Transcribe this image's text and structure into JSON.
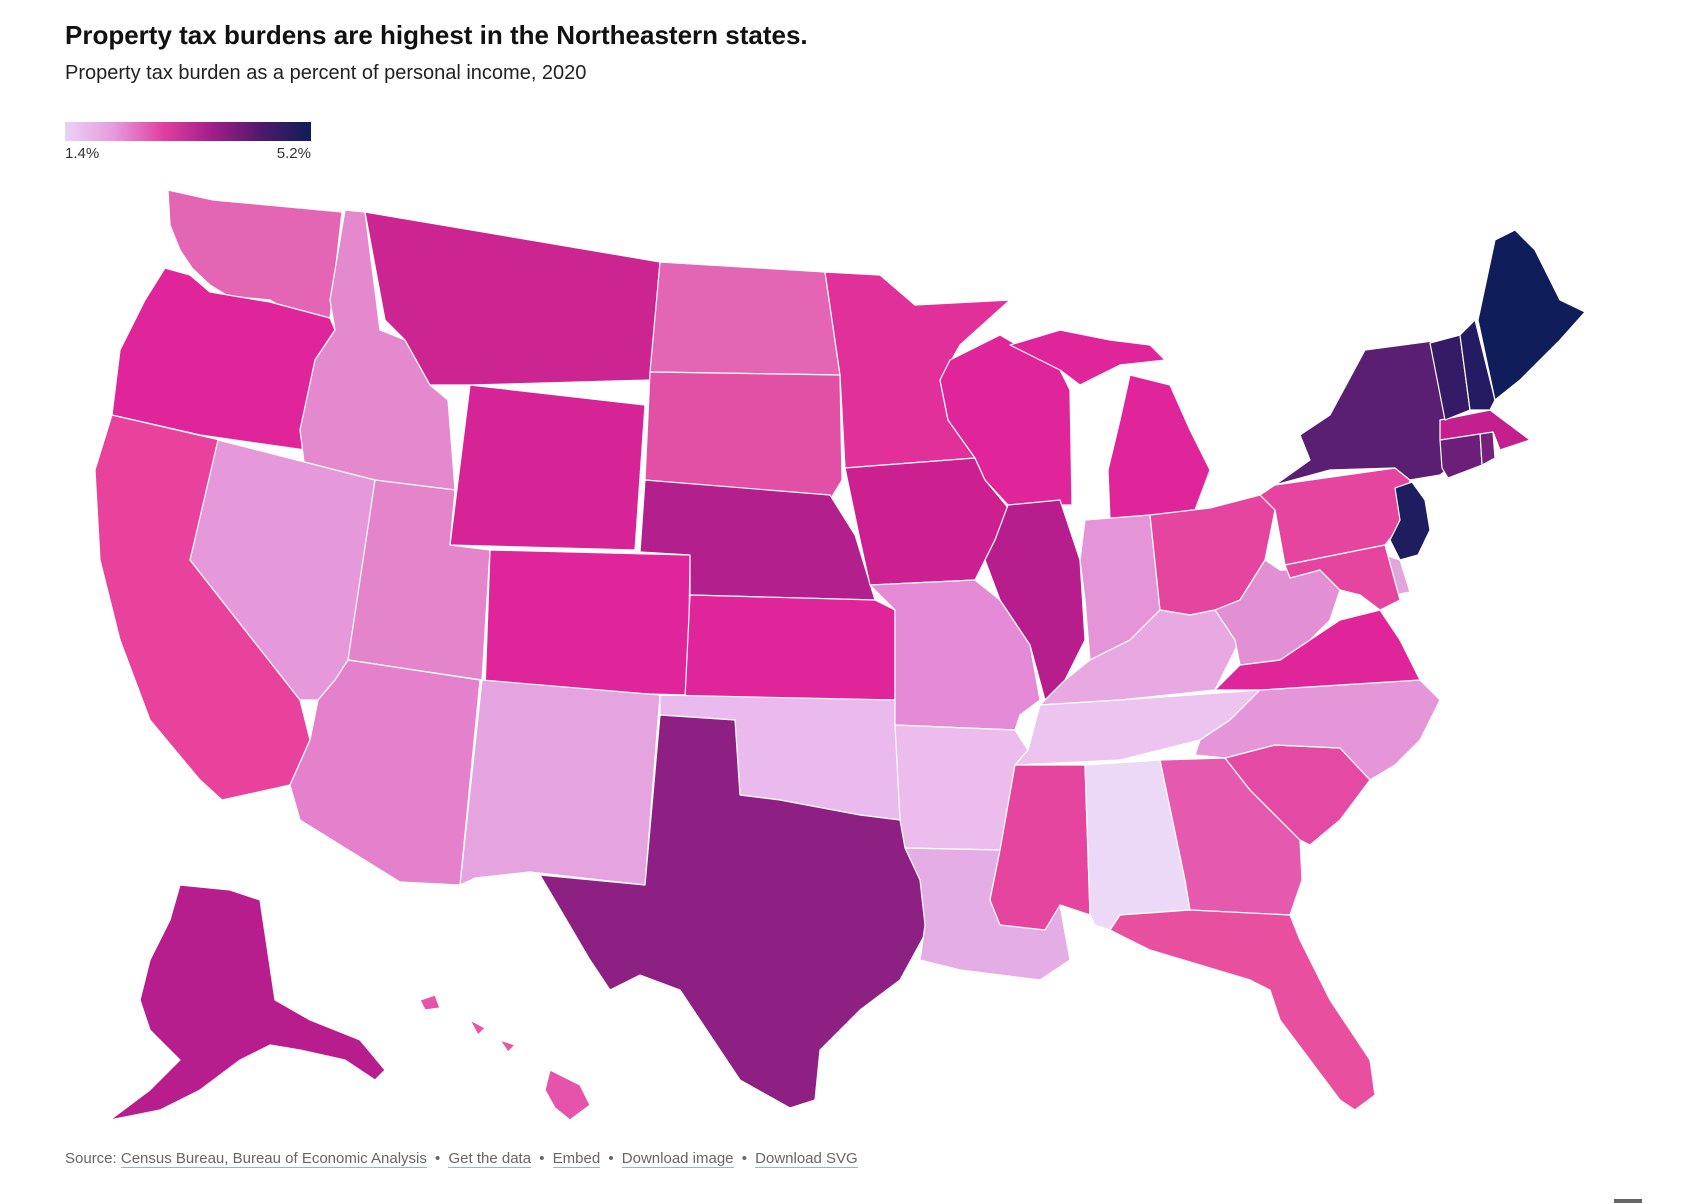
{
  "title": "Property tax burdens are highest in the Northeastern states.",
  "subtitle": "Property tax burden as a percent of personal income, 2020",
  "legend": {
    "min_label": "1.4%",
    "max_label": "5.2%",
    "min_value": 1.4,
    "max_value": 5.2,
    "color_stops": [
      "#ebd2f5",
      "#e59add",
      "#e03fa0",
      "#a11e8a",
      "#4d1a6b",
      "#0f1d5a"
    ]
  },
  "map_data": {
    "type": "choropleth",
    "unit": "percent of personal income",
    "states": [
      {
        "name": "Washington",
        "value": 3.0,
        "color": "#e565b5"
      },
      {
        "name": "Oregon",
        "value": 3.5,
        "color": "#e0259a"
      },
      {
        "name": "California",
        "value": 3.0,
        "color": "#e8429c"
      },
      {
        "name": "Idaho",
        "value": 2.4,
        "color": "#e589cf"
      },
      {
        "name": "Nevada",
        "value": 2.2,
        "color": "#e598da"
      },
      {
        "name": "Montana",
        "value": 3.7,
        "color": "#cc2490"
      },
      {
        "name": "Wyoming",
        "value": 3.6,
        "color": "#d62396"
      },
      {
        "name": "Utah",
        "value": 2.5,
        "color": "#e484cb"
      },
      {
        "name": "Arizona",
        "value": 2.6,
        "color": "#e580cc"
      },
      {
        "name": "Colorado",
        "value": 3.4,
        "color": "#e0259a"
      },
      {
        "name": "New Mexico",
        "value": 2.0,
        "color": "#e5a4e0"
      },
      {
        "name": "North Dakota",
        "value": 2.8,
        "color": "#e565b5"
      },
      {
        "name": "South Dakota",
        "value": 3.1,
        "color": "#e250a6"
      },
      {
        "name": "Nebraska",
        "value": 3.9,
        "color": "#b31f8c"
      },
      {
        "name": "Kansas",
        "value": 3.5,
        "color": "#e0259a"
      },
      {
        "name": "Oklahoma",
        "value": 1.7,
        "color": "#eab9ee"
      },
      {
        "name": "Texas",
        "value": 4.0,
        "color": "#8d2082"
      },
      {
        "name": "Minnesota",
        "value": 3.4,
        "color": "#e2309a"
      },
      {
        "name": "Iowa",
        "value": 3.8,
        "color": "#cd2090"
      },
      {
        "name": "Missouri",
        "value": 2.4,
        "color": "#e48ad6"
      },
      {
        "name": "Arkansas",
        "value": 1.7,
        "color": "#ecbcec"
      },
      {
        "name": "Louisiana",
        "value": 1.8,
        "color": "#e5ade6"
      },
      {
        "name": "Wisconsin",
        "value": 3.5,
        "color": "#e0259a"
      },
      {
        "name": "Illinois",
        "value": 3.9,
        "color": "#b81d8d"
      },
      {
        "name": "Michigan",
        "value": 3.4,
        "color": "#e0259a"
      },
      {
        "name": "Indiana",
        "value": 2.2,
        "color": "#e594d8"
      },
      {
        "name": "Ohio",
        "value": 3.1,
        "color": "#e5459e"
      },
      {
        "name": "Kentucky",
        "value": 1.9,
        "color": "#e8a9e2"
      },
      {
        "name": "Tennessee",
        "value": 1.6,
        "color": "#ecc4ef"
      },
      {
        "name": "Mississippi",
        "value": 3.0,
        "color": "#e5459e"
      },
      {
        "name": "Alabama",
        "value": 1.4,
        "color": "#ebd9f7"
      },
      {
        "name": "Georgia",
        "value": 2.9,
        "color": "#e559ae"
      },
      {
        "name": "Florida",
        "value": 3.0,
        "color": "#e8509f"
      },
      {
        "name": "South Carolina",
        "value": 3.1,
        "color": "#e44aa3"
      },
      {
        "name": "North Carolina",
        "value": 2.2,
        "color": "#e596d9"
      },
      {
        "name": "Virginia",
        "value": 3.4,
        "color": "#e0259a"
      },
      {
        "name": "West Virginia",
        "value": 2.3,
        "color": "#e28fd3"
      },
      {
        "name": "Pennsylvania",
        "value": 3.1,
        "color": "#e5459e"
      },
      {
        "name": "New York",
        "value": 4.5,
        "color": "#5a1f72"
      },
      {
        "name": "New Jersey",
        "value": 5.1,
        "color": "#1e1d60"
      },
      {
        "name": "Delaware",
        "value": 1.9,
        "color": "#e2a5dc"
      },
      {
        "name": "Maryland",
        "value": 3.1,
        "color": "#e5449f"
      },
      {
        "name": "Connecticut",
        "value": 4.4,
        "color": "#6b1f78"
      },
      {
        "name": "Rhode Island",
        "value": 4.3,
        "color": "#75207b"
      },
      {
        "name": "Massachusetts",
        "value": 3.6,
        "color": "#c4208d"
      },
      {
        "name": "Vermont",
        "value": 4.9,
        "color": "#351b66"
      },
      {
        "name": "New Hampshire",
        "value": 5.1,
        "color": "#241c62"
      },
      {
        "name": "Maine",
        "value": 5.2,
        "color": "#0f1d5a"
      },
      {
        "name": "Alaska",
        "value": 3.8,
        "color": "#b81d8d"
      },
      {
        "name": "Hawaii",
        "value": 3.0,
        "color": "#e553aa"
      }
    ]
  },
  "footer": {
    "source_prefix": "Source:",
    "source_link": "Census Bureau, Bureau of Economic Analysis",
    "separator": "•",
    "get_data": "Get the data",
    "embed": "Embed",
    "download_image": "Download image",
    "download_svg": "Download SVG"
  }
}
